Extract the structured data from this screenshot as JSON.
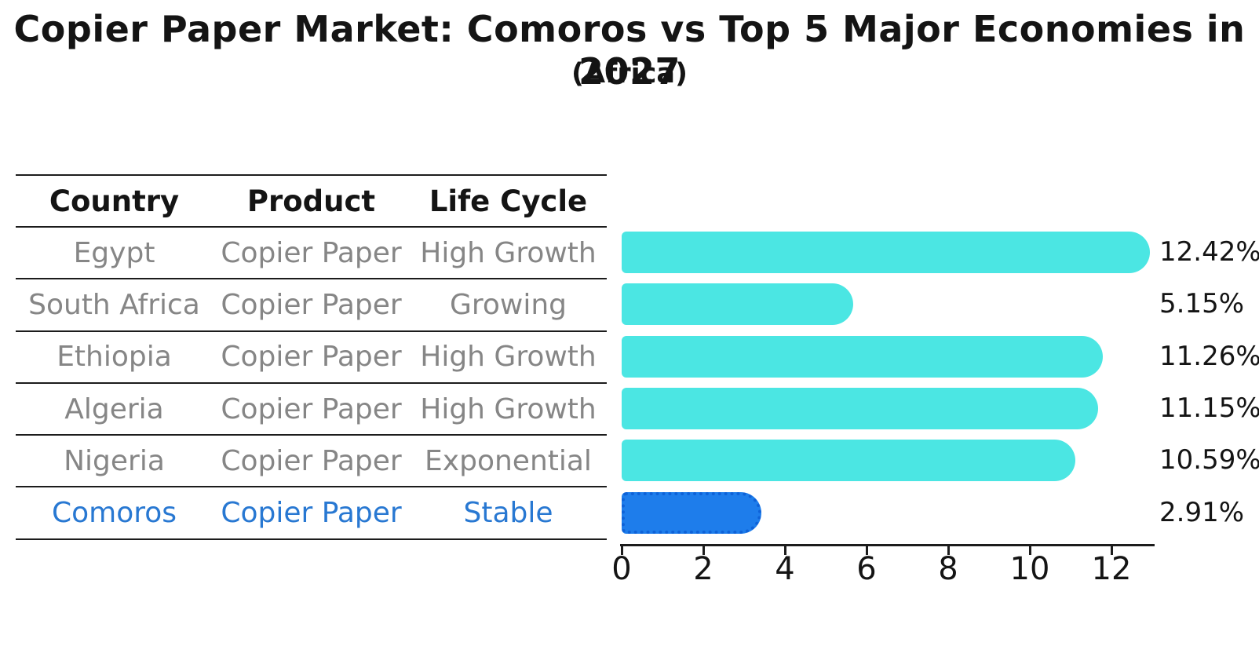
{
  "title": "Copier Paper Market: Comoros vs Top 5 Major Economies in 2027",
  "subtitle": "(Africa)",
  "table": {
    "headers": [
      "Country",
      "Product",
      "Life Cycle"
    ],
    "rows": [
      {
        "country": "Egypt",
        "product": "Copier Paper",
        "life_cycle": "High Growth",
        "highlight": false
      },
      {
        "country": "South Africa",
        "product": "Copier Paper",
        "life_cycle": "Growing",
        "highlight": false
      },
      {
        "country": "Ethiopia",
        "product": "Copier Paper",
        "life_cycle": "High Growth",
        "highlight": false
      },
      {
        "country": "Algeria",
        "product": "Copier Paper",
        "life_cycle": "High Growth",
        "highlight": false
      },
      {
        "country": "Nigeria",
        "product": "Copier Paper",
        "life_cycle": "Exponential",
        "highlight": false
      },
      {
        "country": "Comoros",
        "product": "Copier Paper",
        "life_cycle": "Stable",
        "highlight": true
      }
    ]
  },
  "chart_data": {
    "type": "bar",
    "orientation": "horizontal",
    "title": "Copier Paper Market: Comoros vs Top 5 Major Economies in 2027",
    "subtitle": "(Africa)",
    "categories": [
      "Egypt",
      "South Africa",
      "Ethiopia",
      "Algeria",
      "Nigeria",
      "Comoros"
    ],
    "values": [
      12.42,
      5.15,
      11.26,
      11.15,
      10.59,
      2.91
    ],
    "value_labels": [
      "12.42%",
      "5.15%",
      "11.26%",
      "11.15%",
      "10.59%",
      "2.91%"
    ],
    "unit": "%",
    "xlim": [
      0,
      13
    ],
    "xticks": [
      0,
      2,
      4,
      6,
      8,
      10,
      12
    ],
    "grid": false,
    "legend": null,
    "bar_color": "#4BE6E3",
    "highlight_index": 5,
    "highlight_bar_color": "#1E7DEB",
    "highlight_border_color": "#0E62D8",
    "highlight_text_color": "#2878D2",
    "axis_color": "#1c1c1c",
    "label_color": "#141414",
    "row_text_color": "#868686"
  }
}
